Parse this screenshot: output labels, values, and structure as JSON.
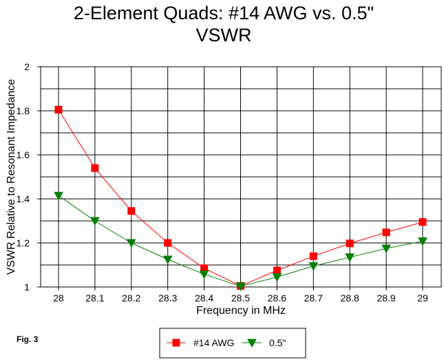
{
  "chart_data": {
    "type": "line",
    "title_lines": [
      "2-Element Quads:  #14 AWG vs. 0.5\"",
      "VSWR"
    ],
    "xlabel": "Frequency in MHz",
    "ylabel": "VSWR Relative to Resonant Impedance",
    "x": [
      28,
      28.1,
      28.2,
      28.3,
      28.4,
      28.5,
      28.6,
      28.7,
      28.8,
      28.9,
      29
    ],
    "x_tick_labels": [
      "28",
      "28.1",
      "28.2",
      "28.3",
      "28.4",
      "28.5",
      "28.6",
      "28.7",
      "28.8",
      "28.9",
      "29"
    ],
    "xlim": [
      28,
      29
    ],
    "ylim": [
      1,
      2
    ],
    "y_ticks": [
      1,
      1.2,
      1.4,
      1.6,
      1.8,
      2
    ],
    "y_tick_labels": [
      "1",
      "1.2",
      "1.4",
      "1.6",
      "1.8",
      "2"
    ],
    "y_minor_gridlines": [
      1.1,
      1.3,
      1.5,
      1.7,
      1.9
    ],
    "grid": true,
    "legend_position": "bottom-center",
    "series": [
      {
        "name": "#14 AWG",
        "color": "#ff0000",
        "marker": "square",
        "values": [
          1.805,
          1.54,
          1.345,
          1.2,
          1.085,
          1.005,
          1.075,
          1.14,
          1.198,
          1.248,
          1.295
        ]
      },
      {
        "name": "0.5\"",
        "color": "#008000",
        "marker": "triangle-down",
        "values": [
          1.415,
          1.3,
          1.2,
          1.125,
          1.058,
          1.003,
          1.045,
          1.095,
          1.135,
          1.175,
          1.208
        ]
      }
    ]
  },
  "figure_label": "Fig. 3"
}
